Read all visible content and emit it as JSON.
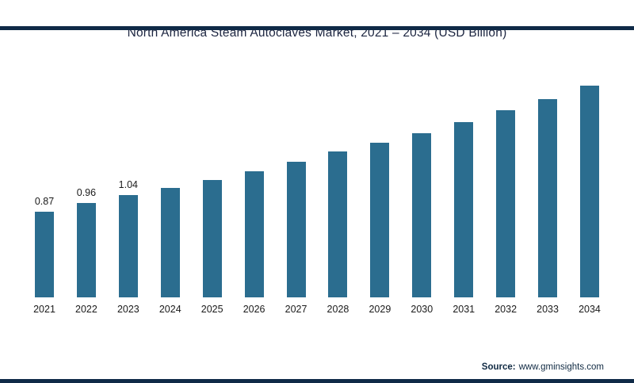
{
  "page": {
    "title": "North America Steam Autoclaves Market, 2021 – 2034 (USD Billion)",
    "source_prefix": "Source:",
    "source_url": "www.gminsights.com"
  },
  "colors": {
    "bar": "#2b6d8f",
    "frame_border": "#0f2a47",
    "title_text": "#1c2540",
    "label_text": "#1a1a1a"
  },
  "chart_data": {
    "type": "bar",
    "title": "North America Steam Autoclaves Market, 2021 – 2034 (USD Billion)",
    "categories": [
      "2021",
      "2022",
      "2023",
      "2024",
      "2025",
      "2026",
      "2027",
      "2028",
      "2029",
      "2030",
      "2031",
      "2032",
      "2033",
      "2034"
    ],
    "values": [
      0.87,
      0.96,
      1.04,
      1.11,
      1.19,
      1.28,
      1.38,
      1.48,
      1.57,
      1.67,
      1.78,
      1.9,
      2.02,
      2.15
    ],
    "data_labels": [
      "0.87",
      "0.96",
      "1.04",
      "",
      "",
      "",
      "",
      "",
      "",
      "",
      "",
      "",
      "",
      ""
    ],
    "xlabel": "",
    "ylabel": "",
    "ylim": [
      0,
      2.3
    ],
    "grid": false,
    "legend": false,
    "bar_color": "#2b6d8f"
  }
}
